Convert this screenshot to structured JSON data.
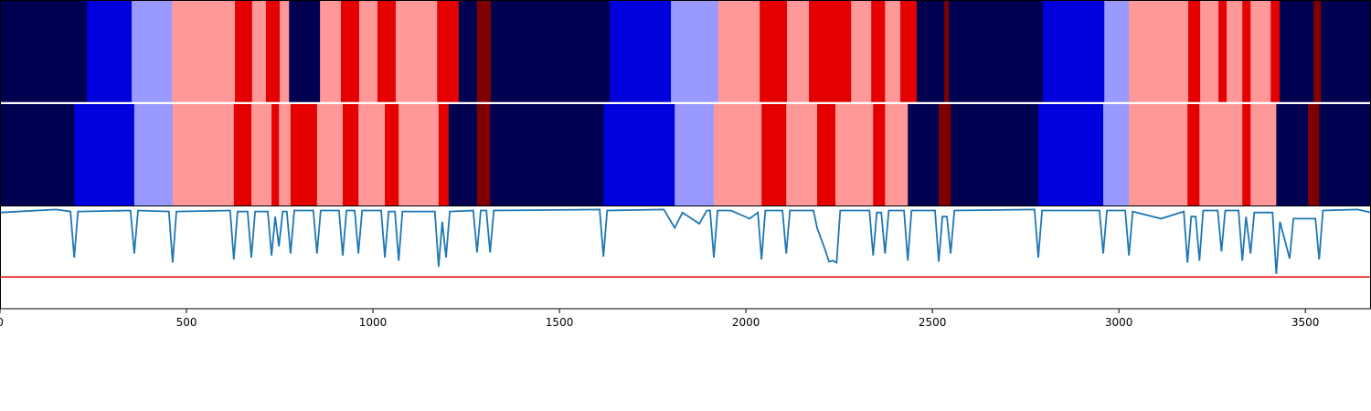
{
  "chart_data": [
    {
      "type": "segments",
      "edges": [
        0,
        233,
        353,
        461,
        630,
        676,
        713,
        750,
        775,
        858,
        914,
        963,
        1012,
        1061,
        1172,
        1230,
        1279,
        1316,
        1635,
        1799,
        1926,
        2037,
        2110,
        2169,
        2282,
        2336,
        2373,
        2414,
        2458,
        2532,
        2544,
        2796,
        2961,
        3027,
        3186,
        3218,
        3267,
        3289,
        3331,
        3353,
        3407,
        3431,
        3522,
        3542,
        3676
      ],
      "colors": [
        "#000050",
        "#0000dd",
        "#9999ff",
        "#ff9999",
        "#e50000",
        "#ff9999",
        "#e50000",
        "#ff9999",
        "#000050",
        "#ff9999",
        "#e50000",
        "#ff9999",
        "#e50000",
        "#ff9999",
        "#e50000",
        "#000050",
        "#800000",
        "#000050",
        "#0000dd",
        "#9999ff",
        "#ff9999",
        "#e50000",
        "#ff9999",
        "#e50000",
        "#ff9999",
        "#e50000",
        "#ff9999",
        "#e50000",
        "#000050",
        "#800000",
        "#000050",
        "#0000dd",
        "#9999ff",
        "#ff9999",
        "#e50000",
        "#ff9999",
        "#e50000",
        "#ff9999",
        "#e50000",
        "#ff9999",
        "#e50000",
        "#000050",
        "#800000",
        "#000050"
      ]
    },
    {
      "type": "segments",
      "edges": [
        0,
        199,
        360,
        463,
        627,
        674,
        728,
        748,
        779,
        850,
        919,
        961,
        1032,
        1069,
        1176,
        1203,
        1279,
        1314,
        1618,
        1809,
        1914,
        2042,
        2108,
        2191,
        2240,
        2341,
        2373,
        2434,
        2517,
        2549,
        2784,
        2958,
        3027,
        3184,
        3216,
        3331,
        3353,
        3422,
        3507,
        3537,
        3676
      ],
      "colors": [
        "#000050",
        "#0000dd",
        "#9999ff",
        "#ff9999",
        "#e50000",
        "#ff9999",
        "#e50000",
        "#ff9999",
        "#e50000",
        "#ff9999",
        "#e50000",
        "#ff9999",
        "#e50000",
        "#ff9999",
        "#e50000",
        "#000050",
        "#800000",
        "#000050",
        "#0000dd",
        "#9999ff",
        "#ff9999",
        "#e50000",
        "#ff9999",
        "#e50000",
        "#ff9999",
        "#e50000",
        "#ff9999",
        "#000050",
        "#800000",
        "#000050",
        "#0000dd",
        "#9999ff",
        "#ff9999",
        "#e50000",
        "#ff9999",
        "#e50000",
        "#ff9999",
        "#000050",
        "#800000",
        "#000050"
      ]
    },
    {
      "type": "line",
      "xlim": [
        0,
        3676
      ],
      "ylim": [
        0,
        1
      ],
      "xticks": [
        0,
        500,
        1000,
        1500,
        2000,
        2500,
        3000,
        3500
      ],
      "hlines": [
        {
          "value": 0.31,
          "color": "#e00000"
        }
      ],
      "x": [
        0,
        150,
        189,
        199,
        209,
        350,
        360,
        370,
        453,
        463,
        473,
        617,
        627,
        637,
        664,
        674,
        684,
        718,
        728,
        738,
        748,
        758,
        769,
        779,
        789,
        840,
        850,
        860,
        909,
        919,
        929,
        951,
        961,
        971,
        1022,
        1032,
        1042,
        1059,
        1069,
        1079,
        1166,
        1176,
        1186,
        1196,
        1206,
        1269,
        1279,
        1289,
        1304,
        1314,
        1324,
        1608,
        1618,
        1628,
        1780,
        1809,
        1830,
        1875,
        1895,
        1904,
        1914,
        1924,
        1960,
        2010,
        2032,
        2042,
        2052,
        2098,
        2108,
        2118,
        2181,
        2191,
        2210,
        2223,
        2233,
        2243,
        2253,
        2331,
        2341,
        2351,
        2363,
        2373,
        2383,
        2424,
        2434,
        2444,
        2507,
        2517,
        2527,
        2539,
        2549,
        2559,
        2774,
        2784,
        2794,
        2948,
        2958,
        2968,
        3017,
        3027,
        3037,
        3113,
        3174,
        3184,
        3194,
        3206,
        3216,
        3226,
        3265,
        3275,
        3285,
        3321,
        3331,
        3341,
        3353,
        3363,
        3412,
        3422,
        3432,
        3458,
        3468,
        3527,
        3537,
        3547,
        3640,
        3676
      ],
      "series": [
        {
          "color": "#1f77b4",
          "values": [
            0.94,
            0.97,
            0.95,
            0.5,
            0.95,
            0.96,
            0.54,
            0.96,
            0.95,
            0.45,
            0.95,
            0.96,
            0.48,
            0.95,
            0.95,
            0.5,
            0.95,
            0.95,
            0.52,
            0.9,
            0.61,
            0.95,
            0.95,
            0.54,
            0.96,
            0.96,
            0.54,
            0.96,
            0.96,
            0.52,
            0.96,
            0.96,
            0.54,
            0.96,
            0.96,
            0.5,
            0.95,
            0.95,
            0.47,
            0.95,
            0.95,
            0.41,
            0.85,
            0.5,
            0.95,
            0.96,
            0.55,
            0.96,
            0.96,
            0.55,
            0.96,
            0.97,
            0.51,
            0.96,
            0.97,
            0.79,
            0.94,
            0.83,
            0.96,
            0.96,
            0.5,
            0.96,
            0.96,
            0.88,
            0.94,
            0.48,
            0.96,
            0.96,
            0.54,
            0.96,
            0.96,
            0.79,
            0.6,
            0.46,
            0.47,
            0.45,
            0.96,
            0.96,
            0.52,
            0.94,
            0.94,
            0.54,
            0.96,
            0.96,
            0.47,
            0.96,
            0.96,
            0.46,
            0.9,
            0.9,
            0.54,
            0.96,
            0.97,
            0.5,
            0.96,
            0.96,
            0.54,
            0.96,
            0.96,
            0.52,
            0.95,
            0.88,
            0.95,
            0.45,
            0.9,
            0.9,
            0.47,
            0.96,
            0.96,
            0.56,
            0.96,
            0.96,
            0.47,
            0.9,
            0.54,
            0.94,
            0.94,
            0.34,
            0.85,
            0.49,
            0.88,
            0.88,
            0.48,
            0.96,
            0.97,
            0.94
          ]
        }
      ]
    }
  ]
}
